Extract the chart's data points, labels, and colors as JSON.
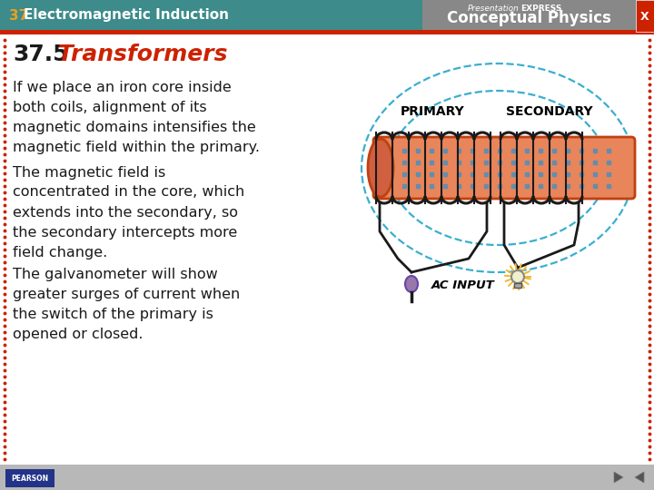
{
  "header_bg": "#3d8b8b",
  "header_number_color": "#e8a020",
  "header_text_color": "#ffffff",
  "logo_bg": "#888888",
  "title_number": "37.5",
  "title_word": " Transformers",
  "title_number_color": "#1a1a1a",
  "title_word_color": "#cc2200",
  "body_bg": "#ffffff",
  "body_text_color": "#1a1a1a",
  "border_dot_color": "#cc2200",
  "bottom_bg": "#b8b8b8",
  "core_color": "#e8855a",
  "core_edge_color": "#c04010",
  "coil_color": "#1a1a1a",
  "field_line_color": "#3aafcf",
  "dot_color": "#4a90c0",
  "wire_color": "#1a1a1a",
  "plug_color": "#9977aa",
  "bulb_glow_color": "#f0b830",
  "bulb_body_color": "#f0eecc",
  "header_red_line": "#cc2200",
  "lines_p1": [
    "If we place an iron core inside",
    "both coils, alignment of its",
    "magnetic domains intensifies the",
    "magnetic field within the primary."
  ],
  "lines_p2": [
    "The magnetic field is",
    "concentrated in the core, which",
    "extends into the secondary, so",
    "the secondary intercepts more",
    "field change."
  ],
  "lines_p3": [
    "The galvanometer will show",
    "greater surges of current when",
    "the switch of the primary is",
    "opened or closed."
  ],
  "label_primary": "PRIMARY",
  "label_secondary": "SECONDARY",
  "label_ac": "AC INPUT"
}
